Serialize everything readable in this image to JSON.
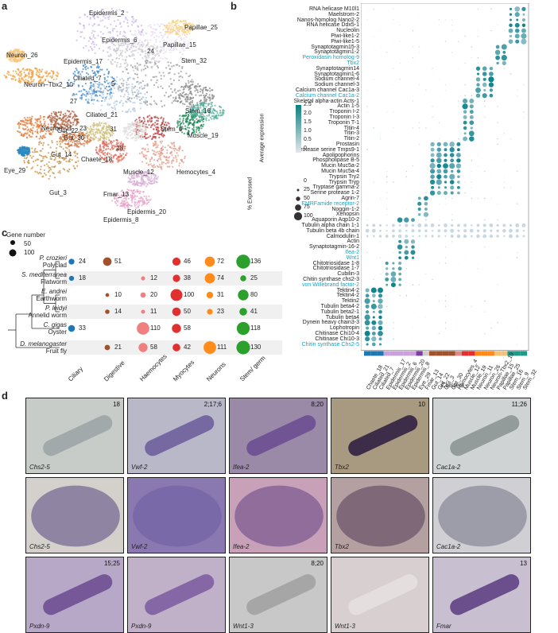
{
  "panels": {
    "a": "a",
    "b": "b",
    "c": "c",
    "d": "d"
  },
  "umap": {
    "clusters": [
      {
        "label": "Epidermis_2"
      },
      {
        "label": "Epidermis_6"
      },
      {
        "label": "Papillae_25"
      },
      {
        "label": "Papillae_15"
      },
      {
        "label": "24"
      },
      {
        "label": "Stem_32"
      },
      {
        "label": "Epidermis_17"
      },
      {
        "label": "Neuron_26"
      },
      {
        "label": "Neuron–Tbx2_10"
      },
      {
        "label": "Ciliated_7"
      },
      {
        "label": "5"
      },
      {
        "label": "Ciliated_21"
      },
      {
        "label": "27"
      },
      {
        "label": "23"
      },
      {
        "label": "31"
      },
      {
        "label": "Neuron_11"
      },
      {
        "label": "Gut_22"
      },
      {
        "label": "Gut_30"
      },
      {
        "label": "Gut_14"
      },
      {
        "label": "Stem_16"
      },
      {
        "label": "Stem_9"
      },
      {
        "label": "Muscle_19"
      },
      {
        "label": "Eye_29"
      },
      {
        "label": "Chaete_18"
      },
      {
        "label": "28"
      },
      {
        "label": "Gut_3"
      },
      {
        "label": "Muscle_12"
      },
      {
        "label": "Hemocytes_4"
      },
      {
        "label": "Fmar_13"
      },
      {
        "label": "Epidermis_20"
      },
      {
        "label": "Epidermis_8"
      }
    ]
  },
  "dotplot": {
    "genes": [
      {
        "name": "RNA helicase M10l1",
        "hl": false
      },
      {
        "name": "Maelstrom-2",
        "hl": false
      },
      {
        "name": "Nanos-homolog Nano2-2",
        "hl": false
      },
      {
        "name": "RNA helicase Ddx5-1",
        "hl": false
      },
      {
        "name": "Nucleolin",
        "hl": false
      },
      {
        "name": "Piwi-like1-2",
        "hl": false
      },
      {
        "name": "Piwi-like1-5",
        "hl": false
      },
      {
        "name": "Synaptotagmin15-3",
        "hl": false
      },
      {
        "name": "Synaptotagmin1-2",
        "hl": false
      },
      {
        "name": "Peroxidasin homolog-9",
        "hl": true
      },
      {
        "name": "Tbx2",
        "hl": true
      },
      {
        "name": "Synaptotagmin14",
        "hl": false
      },
      {
        "name": "Synaptotagmin1-6",
        "hl": false
      },
      {
        "name": "Sodium channel-4",
        "hl": false
      },
      {
        "name": "Sodium channel-3",
        "hl": false
      },
      {
        "name": "Calcium channel Cac1a-3",
        "hl": false
      },
      {
        "name": "Calcium channel Cac1a-2",
        "hl": true
      },
      {
        "name": "Skeletal alpha-actin Acts-1",
        "hl": false
      },
      {
        "name": "Actin 1-5",
        "hl": false
      },
      {
        "name": "Troponin I-2",
        "hl": false
      },
      {
        "name": "Troponin I-3",
        "hl": false
      },
      {
        "name": "Troponin T-1",
        "hl": false
      },
      {
        "name": "Titin-4",
        "hl": false
      },
      {
        "name": "Titin-3",
        "hl": false
      },
      {
        "name": "Titin-2",
        "hl": false
      },
      {
        "name": "Prostasin",
        "hl": false
      },
      {
        "name": "Protease serine Tmps9-1",
        "hl": false
      },
      {
        "name": "Apolipophorins",
        "hl": false
      },
      {
        "name": "Phospholipase B-5",
        "hl": false
      },
      {
        "name": "Mucin Muc5a-2",
        "hl": false
      },
      {
        "name": "Mucin Muc5a-4",
        "hl": false
      },
      {
        "name": "Trypsin Try2",
        "hl": false
      },
      {
        "name": "Trypsin Tryp",
        "hl": false
      },
      {
        "name": "Tryptase gamma-2",
        "hl": false
      },
      {
        "name": "Serine protease 1-2",
        "hl": false
      },
      {
        "name": "Agrin-7",
        "hl": false
      },
      {
        "name": "FMRFamide receptor-2",
        "hl": true
      },
      {
        "name": "Noggin-1-2",
        "hl": false
      },
      {
        "name": "Xenopsin",
        "hl": false
      },
      {
        "name": "Aquaporin Aqp10-2",
        "hl": false
      },
      {
        "name": "Tubulin alpha chain 1-1",
        "hl": false
      },
      {
        "name": "Tubulin beta 4b chain",
        "hl": false
      },
      {
        "name": "Calmodulin-1",
        "hl": false
      },
      {
        "name": "Actin",
        "hl": false
      },
      {
        "name": "Synaptotagmin-16-2",
        "hl": false
      },
      {
        "name": "Ifea-2",
        "hl": true
      },
      {
        "name": "Wnt1",
        "hl": true
      },
      {
        "name": "Chitotriosidase 1-8",
        "hl": false
      },
      {
        "name": "Chitotriosidase 1-7",
        "hl": false
      },
      {
        "name": "Cubilin-3",
        "hl": false
      },
      {
        "name": "Chitin synthase chs2-3",
        "hl": false
      },
      {
        "name": "von Willebrand factor-2",
        "hl": true
      },
      {
        "name": "Tektin4-2",
        "hl": false
      },
      {
        "name": "Tektin4-2",
        "hl": false
      },
      {
        "name": "Tektin2",
        "hl": false
      },
      {
        "name": "Tubulin beta4-2",
        "hl": false
      },
      {
        "name": "Tubulin beta2-1",
        "hl": false
      },
      {
        "name": "Tubulin beta4",
        "hl": false
      },
      {
        "name": "Dynein heavy chain3-3",
        "hl": false
      },
      {
        "name": "Lophotropin",
        "hl": false
      },
      {
        "name": "Chitinase Chi10-4",
        "hl": false
      },
      {
        "name": "Chitinase Chi10-3",
        "hl": false
      },
      {
        "name": "Chitin synthase Chs2-5",
        "hl": true
      }
    ],
    "clusters": [
      "Chaete_18",
      "Ciliated_21",
      "Ciliated_7",
      "Epidermis_17",
      "Epidermis_2",
      "Epidermis_6",
      "Epidermis_20",
      "Epidermis_8",
      "Eye_29",
      "Fmar_13",
      "Gut_14",
      "Gut_22",
      "Gut_3",
      "Gut_30",
      "Hemocytes_4",
      "Muscle_12",
      "Muscle_19",
      "Neuron_11",
      "Neuron_26",
      "Neuron-Tbx2_10",
      "Papillae_15",
      "Papillae_25",
      "Stem_16",
      "Stem_9",
      "Stem_32"
    ],
    "cluster_colors": [
      "#1f77b4",
      "#1f77b4",
      "#1f77b4",
      "#c8a2d8",
      "#c8a2d8",
      "#c8a2d8",
      "#c8a2d8",
      "#c8a2d8",
      "#7b3fa0",
      "#cccccc",
      "#a0522d",
      "#a0522d",
      "#a0522d",
      "#a0522d",
      "#d98b8b",
      "#e03030",
      "#e03030",
      "#ff8c1a",
      "#ff8c1a",
      "#ff8c1a",
      "#f5c27a",
      "#f5c27a",
      "#1f9a8a",
      "#1f9a8a",
      "#1f9a8a"
    ],
    "xlabel": "Clusters",
    "legend": {
      "color_title": "Average expression",
      "color_ticks": [
        "2.5",
        "2.0",
        "1.5",
        "1.0",
        "0.5",
        "0"
      ],
      "size_title": "% Expressed",
      "size_ticks": [
        "0",
        "25",
        "50",
        "75",
        "100"
      ]
    }
  },
  "tree": {
    "legend_title": "Gene number",
    "legend_ticks": [
      "50",
      "100"
    ],
    "columns": [
      "Ciliary",
      "Digestive",
      "Haemocytes",
      "Myocytes",
      "Neurons",
      "Stem/\ngerm"
    ],
    "column_colors": [
      "#1f77b4",
      "#a0522d",
      "#f08080",
      "#e03030",
      "#ff8c1a",
      "#2ca02c"
    ],
    "species": [
      {
        "latin": "P. crozieri",
        "common": "Polyclad",
        "values": [
          24,
          51,
          null,
          46,
          72,
          136
        ]
      },
      {
        "latin": "S. mediterranea",
        "common": "Flatworm",
        "values": [
          18,
          null,
          12,
          38,
          74,
          25
        ]
      },
      {
        "latin": "E. andrei",
        "common": "Earthworm",
        "values": [
          null,
          10,
          20,
          100,
          31,
          80
        ]
      },
      {
        "latin": "P. leidyi",
        "common": "Annelid worm",
        "values": [
          null,
          14,
          11,
          50,
          23,
          41
        ]
      },
      {
        "latin": "C. gigas",
        "common": "Oyster",
        "values": [
          33,
          null,
          110,
          58,
          null,
          118
        ]
      },
      {
        "latin": "D. melanogaster",
        "common": "Fruit fly",
        "values": [
          null,
          21,
          58,
          42,
          111,
          130
        ]
      }
    ]
  },
  "images": {
    "row1": [
      {
        "gene": "Chs2-5",
        "num": "18"
      },
      {
        "gene": "Vwf-2",
        "num": "2;17;6"
      },
      {
        "gene": "Ifea-2",
        "num": "8;20"
      },
      {
        "gene": "Tbx2",
        "num": "10"
      },
      {
        "gene": "Cac1a-2",
        "num": "11;26"
      }
    ],
    "row2": [
      {
        "gene": "Chs2-5",
        "num": ""
      },
      {
        "gene": "Vwf-2",
        "num": ""
      },
      {
        "gene": "Ifea-2",
        "num": ""
      },
      {
        "gene": "Tbx2",
        "num": ""
      },
      {
        "gene": "Cac1a-2",
        "num": ""
      }
    ],
    "row3": [
      {
        "gene": "Pxdn-9",
        "num": "15;25"
      },
      {
        "gene": "Pxdn-9",
        "num": ""
      },
      {
        "gene": "Wnt1-3",
        "num": "8;20"
      },
      {
        "gene": "Wnt1-3",
        "num": ""
      },
      {
        "gene": "Fmar",
        "num": "13"
      }
    ]
  }
}
